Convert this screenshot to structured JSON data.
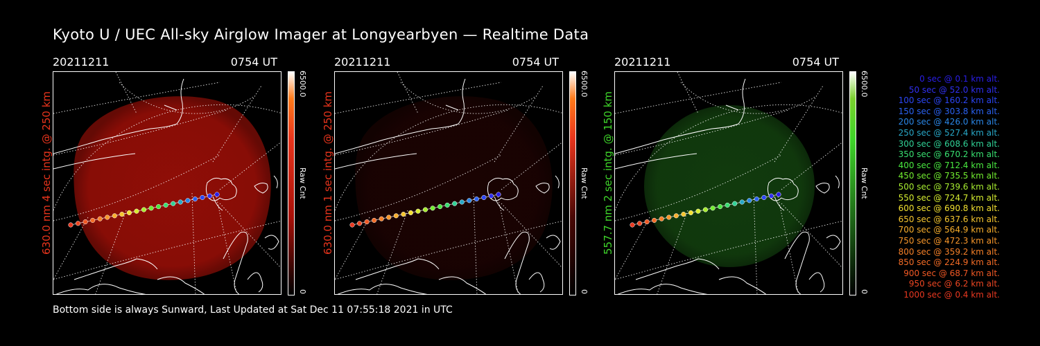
{
  "title": "Kyoto U / UEC All-sky Airglow Imager at Longyearbyen — Realtime Data",
  "footer": "Bottom side is always Sunward, Last Updated at Sat Dec 11 07:55:18 2021 in UTC",
  "panels": [
    {
      "date": "20211211",
      "time": "0754 UT",
      "side_label": "630.0 nm 4 sec intg. @ 250 km",
      "scale_max": "6500.0",
      "scale_min": "0",
      "scale_unit": "Raw Cnt",
      "color": "#e8341c",
      "glow": "#a81008",
      "glow_level": 0.85,
      "cbar_top": "#ff7a1a"
    },
    {
      "date": "20211211",
      "time": "0754 UT",
      "side_label": "630.0 nm 1 sec intg. @ 250 km",
      "scale_max": "6500.0",
      "scale_min": "0",
      "scale_unit": "Raw Cnt",
      "color": "#e8341c",
      "glow": "#4a0805",
      "glow_level": 0.35,
      "cbar_top": "#ff7a1a"
    },
    {
      "date": "20211211",
      "time": "0754 UT",
      "side_label": "557.7 nm 2 sec intg. @ 150 km",
      "scale_max": "6500.0",
      "scale_min": "0",
      "scale_unit": "Raw Cnt",
      "color": "#3fd62a",
      "glow": "#1f6a18",
      "glow_level": 0.55,
      "cbar_top": "#7ad02e"
    }
  ],
  "trajectory": {
    "points": [
      {
        "t": "0 sec",
        "alt": "0.1 km alt.",
        "color": "#2a1ee8"
      },
      {
        "t": "50 sec",
        "alt": "52.0 km alt.",
        "color": "#3030f0"
      },
      {
        "t": "100 sec",
        "alt": "160.2 km alt.",
        "color": "#2c46f5"
      },
      {
        "t": "150 sec",
        "alt": "303.8 km alt.",
        "color": "#2a62f2"
      },
      {
        "t": "200 sec",
        "alt": "426.0 km alt.",
        "color": "#2a86e6"
      },
      {
        "t": "250 sec",
        "alt": "527.4 km alt.",
        "color": "#28a8c8"
      },
      {
        "t": "300 sec",
        "alt": "608.6 km alt.",
        "color": "#30d296"
      },
      {
        "t": "350 sec",
        "alt": "670.2 km alt.",
        "color": "#38e070"
      },
      {
        "t": "400 sec",
        "alt": "712.4 km alt.",
        "color": "#4aea40"
      },
      {
        "t": "450 sec",
        "alt": "735.5 km alt.",
        "color": "#72ee30"
      },
      {
        "t": "500 sec",
        "alt": "739.6 km alt.",
        "color": "#a8ee30"
      },
      {
        "t": "550 sec",
        "alt": "724.7 km alt.",
        "color": "#d6ee30"
      },
      {
        "t": "600 sec",
        "alt": "690.8 km alt.",
        "color": "#f2e030"
      },
      {
        "t": "650 sec",
        "alt": "637.6 km alt.",
        "color": "#f6c62e"
      },
      {
        "t": "700 sec",
        "alt": "564.9 km alt.",
        "color": "#f8ae2c"
      },
      {
        "t": "750 sec",
        "alt": "472.3 km alt.",
        "color": "#f8962a"
      },
      {
        "t": "800 sec",
        "alt": "359.2 km alt.",
        "color": "#f68028"
      },
      {
        "t": "850 sec",
        "alt": "224.9 km alt.",
        "color": "#f46c26"
      },
      {
        "t": "900 sec",
        "alt": "68.7 km alt.",
        "color": "#f05824"
      },
      {
        "t": "950 sec",
        "alt": "6.2 km alt.",
        "color": "#ec4622"
      },
      {
        "t": "1000 sec",
        "alt": "0.4 km alt.",
        "color": "#e83820"
      }
    ]
  }
}
